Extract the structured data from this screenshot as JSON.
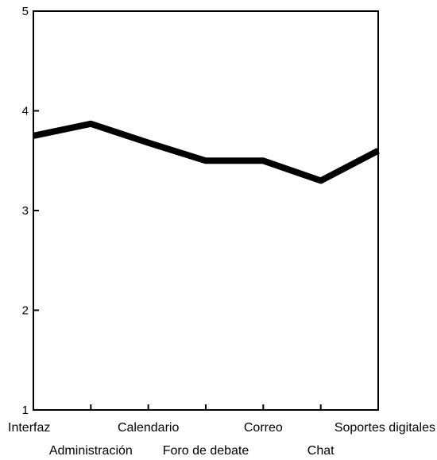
{
  "chart_data": {
    "type": "line",
    "title": "",
    "xlabel": "",
    "ylabel": "",
    "categories": [
      "Interfaz",
      "Administración",
      "Calendario",
      "Foro de debate",
      "Correo",
      "Chat",
      "Soportes digitales"
    ],
    "series": [
      {
        "values": [
          3.75,
          3.87,
          3.68,
          3.5,
          3.5,
          3.3,
          3.6
        ]
      }
    ],
    "ylim": [
      1,
      5
    ],
    "yticks": [
      "1",
      "2",
      "3",
      "4",
      "5"
    ],
    "grid": false,
    "legend": "none",
    "colors": {
      "line": "#000000",
      "axis": "#000000",
      "background": "#ffffff"
    }
  }
}
